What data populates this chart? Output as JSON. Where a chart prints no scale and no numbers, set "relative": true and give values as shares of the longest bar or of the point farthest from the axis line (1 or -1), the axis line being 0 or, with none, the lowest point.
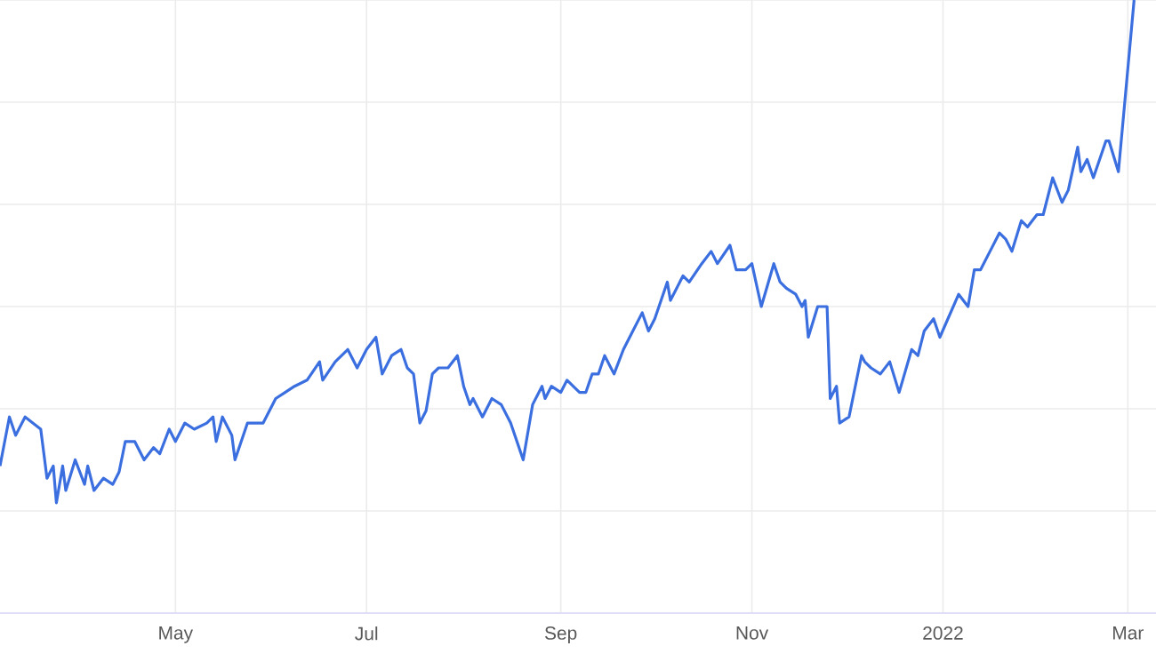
{
  "chart_data": {
    "type": "line",
    "relative": true,
    "grid": true,
    "color": "#3b6fe0",
    "xlim": [
      "2021-03-06",
      "2022-03-10"
    ],
    "xticks": [
      {
        "value": "2021-05-01",
        "label": "May"
      },
      {
        "value": "2021-07-01",
        "label": "Jul"
      },
      {
        "value": "2021-09-01",
        "label": "Sep"
      },
      {
        "value": "2021-11-01",
        "label": "Nov"
      },
      {
        "value": "2022-01-01",
        "label": "2022"
      },
      {
        "value": "2022-03-01",
        "label": "Mar"
      }
    ],
    "x": [
      "2021-03-06",
      "2021-03-09",
      "2021-03-11",
      "2021-03-14",
      "2021-03-19",
      "2021-03-21",
      "2021-03-23",
      "2021-03-24",
      "2021-03-26",
      "2021-03-27",
      "2021-03-30",
      "2021-04-02",
      "2021-04-03",
      "2021-04-05",
      "2021-04-08",
      "2021-04-11",
      "2021-04-13",
      "2021-04-15",
      "2021-04-18",
      "2021-04-21",
      "2021-04-24",
      "2021-04-26",
      "2021-04-29",
      "2021-05-01",
      "2021-05-04",
      "2021-05-07",
      "2021-05-11",
      "2021-05-13",
      "2021-05-14",
      "2021-05-16",
      "2021-05-19",
      "2021-05-20",
      "2021-05-24",
      "2021-05-28",
      "2021-05-29",
      "2021-06-02",
      "2021-06-05",
      "2021-06-08",
      "2021-06-12",
      "2021-06-16",
      "2021-06-17",
      "2021-06-21",
      "2021-06-25",
      "2021-06-28",
      "2021-07-01",
      "2021-07-04",
      "2021-07-06",
      "2021-07-09",
      "2021-07-12",
      "2021-07-14",
      "2021-07-16",
      "2021-07-18",
      "2021-07-20",
      "2021-07-22",
      "2021-07-24",
      "2021-07-27",
      "2021-07-30",
      "2021-08-01",
      "2021-08-03",
      "2021-08-04",
      "2021-08-07",
      "2021-08-10",
      "2021-08-13",
      "2021-08-16",
      "2021-08-20",
      "2021-08-23",
      "2021-08-26",
      "2021-08-27",
      "2021-08-29",
      "2021-09-01",
      "2021-09-03",
      "2021-09-07",
      "2021-09-09",
      "2021-09-11",
      "2021-09-13",
      "2021-09-15",
      "2021-09-18",
      "2021-09-21",
      "2021-09-24",
      "2021-09-27",
      "2021-09-29",
      "2021-10-01",
      "2021-10-05",
      "2021-10-06",
      "2021-10-10",
      "2021-10-12",
      "2021-10-16",
      "2021-10-19",
      "2021-10-21",
      "2021-10-25",
      "2021-10-27",
      "2021-10-30",
      "2021-11-01",
      "2021-11-04",
      "2021-11-08",
      "2021-11-10",
      "2021-11-12",
      "2021-11-15",
      "2021-11-17",
      "2021-11-18",
      "2021-11-19",
      "2021-11-22",
      "2021-11-25",
      "2021-11-26",
      "2021-11-28",
      "2021-11-29",
      "2021-12-02",
      "2021-12-06",
      "2021-12-07",
      "2021-12-09",
      "2021-12-12",
      "2021-12-15",
      "2021-12-18",
      "2021-12-22",
      "2021-12-24",
      "2021-12-26",
      "2021-12-29",
      "2021-12-31",
      "2022-01-06",
      "2022-01-09",
      "2022-01-11",
      "2022-01-13",
      "2022-01-16",
      "2022-01-19",
      "2022-01-21",
      "2022-01-23",
      "2022-01-26",
      "2022-01-28",
      "2022-01-31",
      "2022-02-02",
      "2022-02-05",
      "2022-02-08",
      "2022-02-10",
      "2022-02-13",
      "2022-02-14",
      "2022-02-16",
      "2022-02-18",
      "2022-02-22",
      "2022-02-23",
      "2022-02-26",
      "2022-03-03"
    ],
    "values": [
      0.24,
      0.32,
      0.29,
      0.32,
      0.3,
      0.22,
      0.24,
      0.18,
      0.24,
      0.2,
      0.25,
      0.21,
      0.24,
      0.2,
      0.22,
      0.21,
      0.23,
      0.28,
      0.28,
      0.25,
      0.27,
      0.26,
      0.3,
      0.28,
      0.31,
      0.3,
      0.31,
      0.32,
      0.28,
      0.32,
      0.29,
      0.25,
      0.31,
      0.31,
      0.31,
      0.35,
      0.36,
      0.37,
      0.38,
      0.41,
      0.38,
      0.41,
      0.43,
      0.4,
      0.43,
      0.45,
      0.39,
      0.42,
      0.43,
      0.4,
      0.39,
      0.31,
      0.33,
      0.39,
      0.4,
      0.4,
      0.42,
      0.37,
      0.34,
      0.35,
      0.32,
      0.35,
      0.34,
      0.31,
      0.25,
      0.34,
      0.37,
      0.35,
      0.37,
      0.36,
      0.38,
      0.36,
      0.36,
      0.39,
      0.39,
      0.42,
      0.39,
      0.43,
      0.46,
      0.49,
      0.46,
      0.48,
      0.54,
      0.51,
      0.55,
      0.54,
      0.57,
      0.59,
      0.57,
      0.6,
      0.56,
      0.56,
      0.57,
      0.5,
      0.57,
      0.54,
      0.53,
      0.52,
      0.5,
      0.51,
      0.45,
      0.5,
      0.5,
      0.35,
      0.37,
      0.31,
      0.32,
      0.42,
      0.41,
      0.4,
      0.39,
      0.41,
      0.36,
      0.43,
      0.42,
      0.46,
      0.48,
      0.45,
      0.52,
      0.5,
      0.56,
      0.56,
      0.59,
      0.62,
      0.61,
      0.59,
      0.64,
      0.63,
      0.65,
      0.65,
      0.71,
      0.67,
      0.69,
      0.76,
      0.72,
      0.74,
      0.71,
      0.77,
      0.77,
      0.72,
      1.0
    ]
  }
}
